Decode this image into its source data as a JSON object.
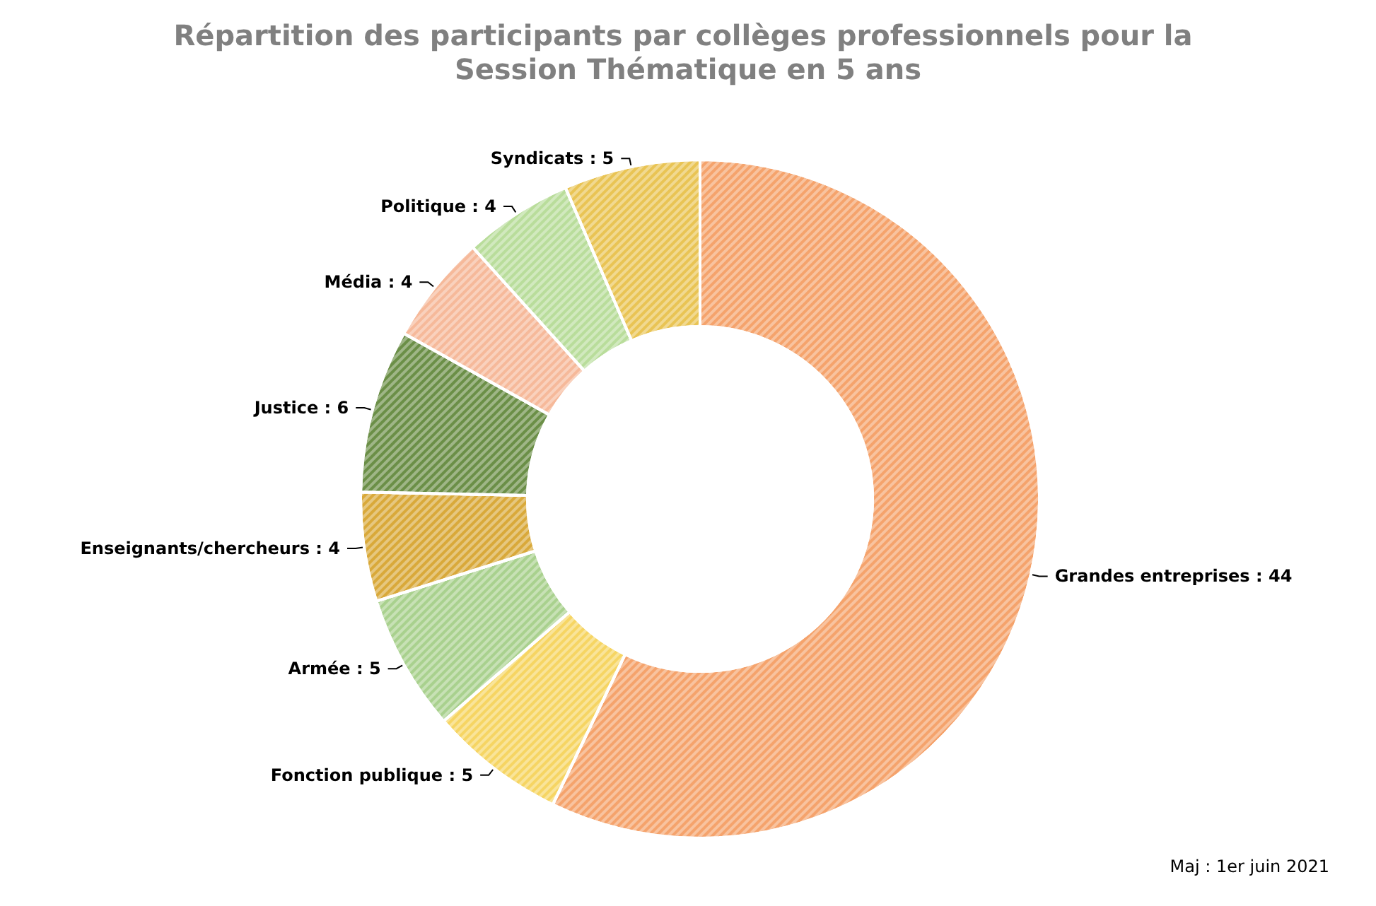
{
  "chart_data": {
    "type": "donut",
    "title": "Répartition des participants par collèges professionnels pour la Session Thématique en 5 ans",
    "categories": [
      "Grandes entreprises",
      "Fonction publique",
      "Armée",
      "Enseignants/chercheurs",
      "Justice",
      "Média",
      "Politique",
      "Syndicats"
    ],
    "values": [
      44,
      5,
      5,
      4,
      6,
      4,
      4,
      5
    ],
    "colors": [
      "#f5a36c",
      "#f6d563",
      "#a9d18e",
      "#d9a93a",
      "#6b8f47",
      "#f6b99a",
      "#b9dd9b",
      "#e9c454"
    ],
    "value_labels": [
      ": 44",
      ": 5",
      ": 5",
      ": 4",
      ": 6",
      ": 4",
      ": 4",
      ": 5"
    ],
    "legend": false,
    "annotations": [
      "Maj : 1er juin 2021"
    ]
  }
}
